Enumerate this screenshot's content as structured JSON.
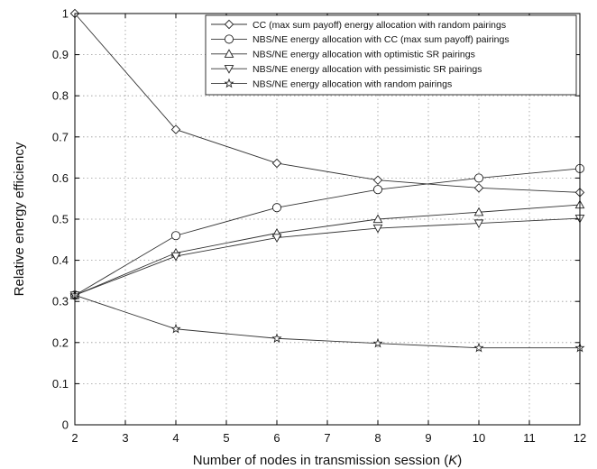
{
  "chart_data": {
    "type": "line",
    "xlabel": "Number of nodes in transmission session (",
    "xlabel_var": "K",
    "xlabel_close": ")",
    "ylabel": "Relative energy efficiency",
    "xlim": [
      2,
      12
    ],
    "ylim": [
      0,
      1
    ],
    "xticks": [
      2,
      3,
      4,
      5,
      6,
      7,
      8,
      9,
      10,
      11,
      12
    ],
    "yticks": [
      0,
      0.1,
      0.2,
      0.3,
      0.4,
      0.5,
      0.6,
      0.7,
      0.8,
      0.9,
      1
    ],
    "grid": true,
    "legend_position": "top-right",
    "x": [
      2,
      4,
      6,
      8,
      10,
      12
    ],
    "series": [
      {
        "name": "CC (max sum payoff) energy allocation with random pairings",
        "marker": "diamond",
        "values": [
          1.0,
          0.718,
          0.636,
          0.595,
          0.576,
          0.565
        ]
      },
      {
        "name": "NBS/NE energy allocation with CC (max sum payoff) pairings",
        "marker": "circle",
        "values": [
          0.315,
          0.46,
          0.528,
          0.572,
          0.6,
          0.623
        ]
      },
      {
        "name": "NBS/NE energy allocation with optimistic SR pairings",
        "marker": "triangle-up",
        "values": [
          0.315,
          0.418,
          0.466,
          0.5,
          0.517,
          0.535
        ]
      },
      {
        "name": "NBS/NE energy allocation with pessimistic SR pairings",
        "marker": "triangle-down",
        "values": [
          0.315,
          0.41,
          0.455,
          0.478,
          0.49,
          0.502
        ]
      },
      {
        "name": "NBS/NE energy allocation with random pairings",
        "marker": "star",
        "values": [
          0.315,
          0.233,
          0.21,
          0.198,
          0.187,
          0.187
        ]
      }
    ]
  }
}
